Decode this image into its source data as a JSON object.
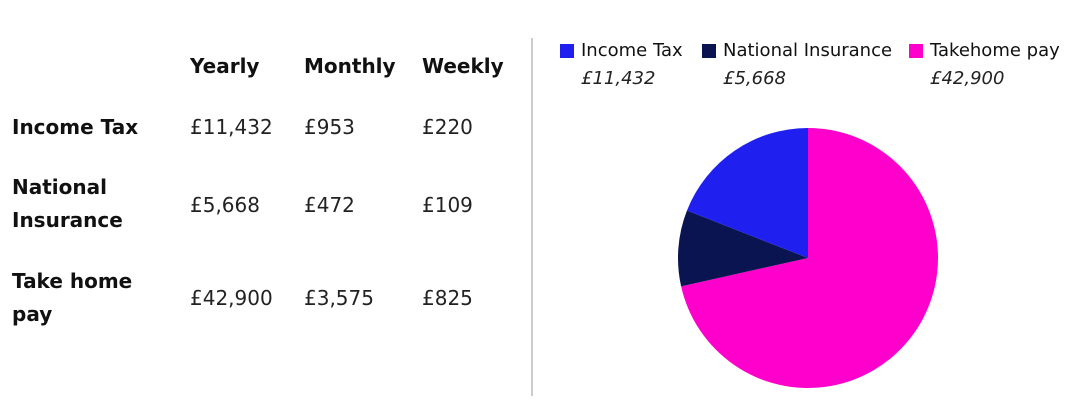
{
  "table": {
    "columns": [
      "Yearly",
      "Monthly",
      "Weekly"
    ],
    "rows": [
      {
        "label": "Income Tax",
        "values": [
          "£11,432",
          "£953",
          "£220"
        ]
      },
      {
        "label": "National Insurance",
        "values": [
          "£5,668",
          "£472",
          "£109"
        ]
      },
      {
        "label": "Take home pay",
        "values": [
          "£42,900",
          "£3,575",
          "£825"
        ]
      }
    ]
  },
  "chart_data": {
    "type": "pie",
    "legend_placement": "top",
    "slices": [
      {
        "name": "Income Tax",
        "value": 11432,
        "label": "£11,432",
        "color": "#1f1fef"
      },
      {
        "name": "National Insurance",
        "value": 5668,
        "label": "£5,668",
        "color": "#0a1450"
      },
      {
        "name": "Takehome pay",
        "value": 42900,
        "label": "£42,900",
        "color": "#ff00cc"
      }
    ]
  }
}
